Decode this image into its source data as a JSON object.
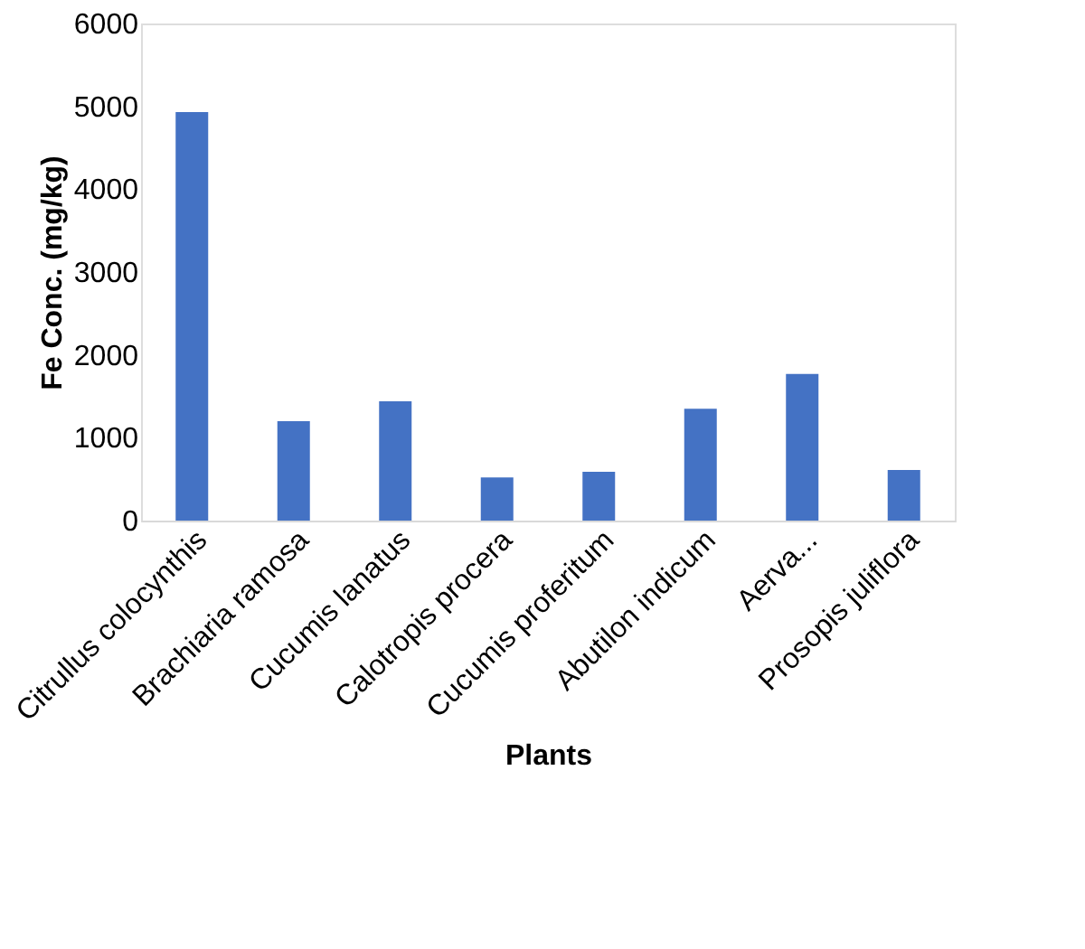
{
  "chart_data": {
    "type": "bar",
    "xlabel": "Plants",
    "ylabel": "Fe Conc. (mg/kg)",
    "categories": [
      "Citrullus colocynthis",
      "Brachiaria ramosa",
      "Cucumis lanatus",
      "Calotropis procera",
      "Cucumis proferitum",
      "Abutilon indicum",
      "Aerva...",
      "Prosopis juliflora"
    ],
    "values": [
      4930,
      1200,
      1440,
      520,
      590,
      1350,
      1770,
      610
    ],
    "color": "#4472c4",
    "ylim": [
      0,
      6000
    ],
    "yticks": [
      0,
      1000,
      2000,
      3000,
      4000,
      5000,
      6000
    ],
    "grid": false
  }
}
